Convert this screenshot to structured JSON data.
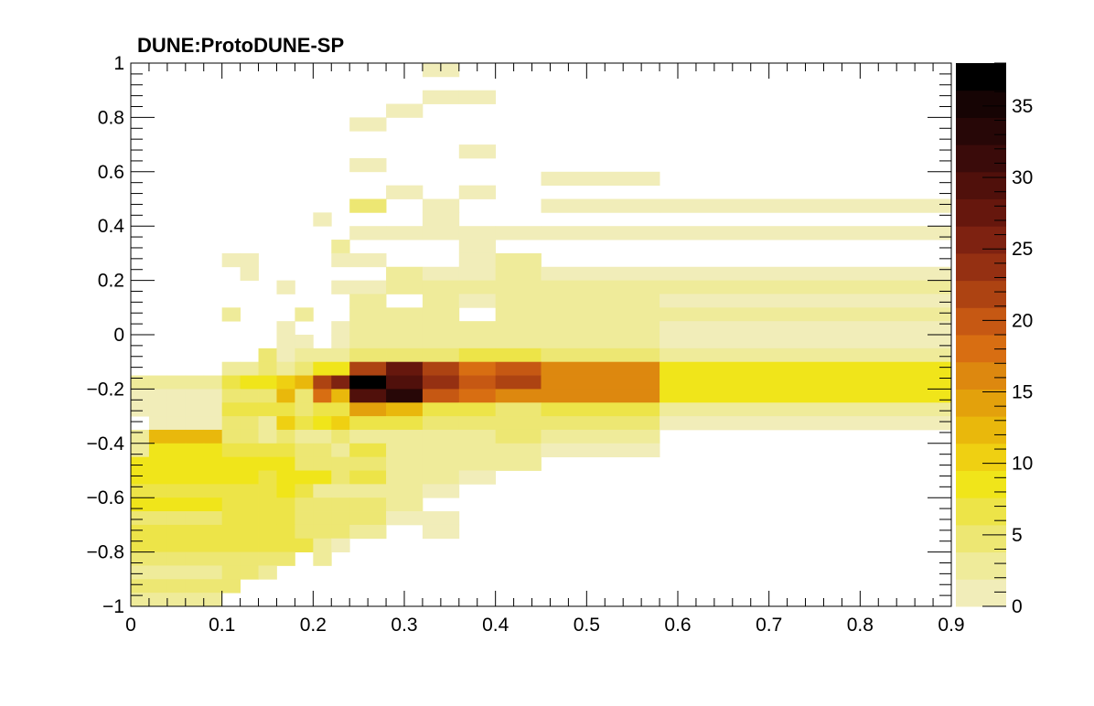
{
  "chart_data": {
    "type": "heatmap",
    "title": "DUNE:ProtoDUNE-SP",
    "xlabel": "",
    "ylabel": "",
    "xlim": [
      0,
      0.9
    ],
    "ylim": [
      -1,
      1
    ],
    "x_ticks": [
      "0",
      "0.1",
      "0.2",
      "0.3",
      "0.4",
      "0.5",
      "0.6",
      "0.7",
      "0.8",
      "0.9"
    ],
    "y_ticks": [
      "−1",
      "−0.8",
      "−0.6",
      "−0.4",
      "−0.2",
      "0",
      "0.2",
      "0.4",
      "0.6",
      "0.8",
      "1"
    ],
    "colorbar": {
      "range": [
        0,
        38
      ],
      "ticks": [
        "0",
        "5",
        "10",
        "15",
        "20",
        "25",
        "30",
        "35"
      ],
      "palette": [
        "#f1edb9",
        "#efeb9a",
        "#ede773",
        "#ede448",
        "#f0e51a",
        "#efd012",
        "#e9b80c",
        "#e3a10c",
        "#dd880f",
        "#d86e12",
        "#c65813",
        "#ad4312",
        "#953012",
        "#7e2211",
        "#66170d",
        "#50100b",
        "#3a0b0a",
        "#270707",
        "#160404",
        "#000000"
      ]
    },
    "x_edges": [
      0,
      0.02,
      0.04,
      0.06,
      0.08,
      0.1,
      0.12,
      0.14,
      0.16,
      0.18,
      0.2,
      0.22,
      0.24,
      0.28,
      0.32,
      0.36,
      0.4,
      0.45,
      0.58,
      0.9
    ],
    "y_edges": [
      -1,
      -0.95,
      -0.9,
      -0.85,
      -0.8,
      -0.75,
      -0.7,
      -0.65,
      -0.6,
      -0.55,
      -0.5,
      -0.45,
      -0.4,
      -0.35,
      -0.3,
      -0.25,
      -0.2,
      -0.15,
      -0.1,
      -0.05,
      0,
      0.05,
      0.1,
      0.15,
      0.2,
      0.25,
      0.3,
      0.35,
      0.4,
      0.45,
      0.5,
      0.55,
      0.6,
      0.65,
      0.7,
      0.75,
      0.8,
      0.85,
      0.9,
      0.95,
      1
    ],
    "y_rows_top_to_bottom": [
      [
        0,
        0,
        0,
        0,
        0,
        0,
        0,
        0,
        0,
        0,
        0,
        0,
        0,
        0,
        1,
        0,
        0,
        0,
        0
      ],
      [
        0,
        0,
        0,
        0,
        0,
        0,
        0,
        0,
        0,
        0,
        0,
        0,
        0,
        0,
        0,
        0,
        0,
        0,
        0
      ],
      [
        0,
        0,
        0,
        0,
        0,
        0,
        0,
        0,
        0,
        0,
        0,
        0,
        0,
        0,
        1,
        1,
        0,
        0,
        0
      ],
      [
        0,
        0,
        0,
        0,
        0,
        0,
        0,
        0,
        0,
        0,
        0,
        0,
        0,
        1,
        0,
        0,
        0,
        0,
        0
      ],
      [
        0,
        0,
        0,
        0,
        0,
        0,
        0,
        0,
        0,
        0,
        0,
        0,
        1,
        0,
        0,
        0,
        0,
        0,
        0
      ],
      [
        0,
        0,
        0,
        0,
        0,
        0,
        0,
        0,
        0,
        0,
        0,
        0,
        0,
        0,
        0,
        0,
        0,
        0,
        0
      ],
      [
        0,
        0,
        0,
        0,
        0,
        0,
        0,
        0,
        0,
        0,
        0,
        0,
        0,
        0,
        0,
        1,
        0,
        0,
        0
      ],
      [
        0,
        0,
        0,
        0,
        0,
        0,
        0,
        0,
        0,
        0,
        0,
        0,
        1,
        0,
        0,
        0,
        0,
        0,
        0
      ],
      [
        0,
        0,
        0,
        0,
        0,
        0,
        0,
        0,
        0,
        0,
        0,
        0,
        0,
        0,
        0,
        0,
        0,
        1,
        0
      ],
      [
        0,
        0,
        0,
        0,
        0,
        0,
        0,
        0,
        0,
        0,
        0,
        0,
        0,
        1,
        0,
        1,
        0,
        0,
        0
      ],
      [
        0,
        0,
        0,
        0,
        0,
        0,
        0,
        0,
        0,
        0,
        0,
        0,
        4,
        0,
        1,
        0,
        0,
        1,
        1
      ],
      [
        0,
        0,
        0,
        0,
        0,
        0,
        0,
        0,
        0,
        0,
        1,
        0,
        0,
        0,
        1,
        0,
        0,
        0,
        0
      ],
      [
        0,
        0,
        0,
        0,
        0,
        0,
        0,
        0,
        0,
        0,
        0,
        0,
        1,
        1,
        1,
        1,
        1,
        1,
        1
      ],
      [
        0,
        0,
        0,
        0,
        0,
        0,
        0,
        0,
        0,
        0,
        0,
        3,
        0,
        0,
        0,
        1,
        0,
        0,
        0
      ],
      [
        0,
        0,
        0,
        0,
        0,
        1,
        1,
        0,
        0,
        0,
        0,
        1,
        1,
        0,
        0,
        1,
        2,
        0,
        0
      ],
      [
        0,
        0,
        0,
        0,
        0,
        0,
        1,
        0,
        0,
        0,
        0,
        0,
        0,
        2,
        1,
        1,
        2,
        1,
        1
      ],
      [
        0,
        0,
        0,
        0,
        0,
        0,
        0,
        0,
        1,
        0,
        0,
        1,
        1,
        2,
        2,
        2,
        2,
        2,
        2
      ],
      [
        0,
        0,
        0,
        0,
        0,
        0,
        0,
        0,
        0,
        0,
        0,
        0,
        3,
        0,
        2,
        1,
        2,
        2,
        1
      ],
      [
        0,
        0,
        0,
        0,
        0,
        2,
        0,
        0,
        0,
        2,
        0,
        0,
        3,
        2,
        2,
        0,
        2,
        2,
        2
      ],
      [
        0,
        0,
        0,
        0,
        0,
        0,
        0,
        0,
        1,
        0,
        0,
        1,
        3,
        3,
        2,
        3,
        3,
        2,
        1
      ],
      [
        0,
        0,
        0,
        0,
        0,
        0,
        0,
        0,
        1,
        1,
        0,
        1,
        3,
        3,
        3,
        3,
        3,
        3,
        1
      ],
      [
        0,
        0,
        0,
        0,
        0,
        0,
        0,
        4,
        1,
        2,
        2,
        3,
        4,
        5,
        5,
        6,
        6,
        5,
        3
      ],
      [
        0,
        0,
        0,
        0,
        0,
        3,
        3,
        4,
        3,
        4,
        8,
        8,
        22,
        28,
        21,
        18,
        19,
        16,
        9
      ],
      [
        3,
        3,
        3,
        3,
        3,
        7,
        8,
        9,
        11,
        13,
        21,
        25,
        37,
        30,
        24,
        20,
        22,
        16,
        8
      ],
      [
        1,
        1,
        1,
        1,
        1,
        5,
        5,
        5,
        13,
        5,
        18,
        12,
        29,
        34,
        20,
        18,
        17,
        17,
        8
      ],
      [
        1,
        1,
        1,
        1,
        1,
        6,
        6,
        6,
        7,
        5,
        7,
        6,
        14,
        12,
        7,
        6,
        5,
        6,
        3
      ],
      [
        0,
        1,
        1,
        1,
        1,
        5,
        5,
        3,
        10,
        6,
        9,
        10,
        6,
        6,
        5,
        4,
        4,
        4,
        1
      ],
      [
        2,
        13,
        13,
        13,
        13,
        4,
        4,
        3,
        5,
        2,
        2,
        5,
        2,
        2,
        3,
        2,
        4,
        3,
        0
      ],
      [
        3,
        8,
        8,
        8,
        8,
        6,
        6,
        6,
        6,
        5,
        5,
        2,
        6,
        2,
        2,
        2,
        3,
        1,
        0
      ],
      [
        8,
        8,
        8,
        8,
        8,
        8,
        8,
        8,
        8,
        5,
        5,
        4,
        4,
        3,
        3,
        3,
        2,
        0,
        0
      ],
      [
        8,
        8,
        8,
        8,
        8,
        8,
        9,
        7,
        8,
        8,
        8,
        4,
        6,
        3,
        2,
        1,
        0,
        0,
        0
      ],
      [
        6,
        6,
        6,
        6,
        6,
        7,
        7,
        6,
        9,
        6,
        2,
        3,
        2,
        3,
        1,
        0,
        0,
        0,
        0
      ],
      [
        8,
        8,
        8,
        8,
        8,
        6,
        6,
        6,
        6,
        5,
        5,
        5,
        4,
        3,
        0,
        0,
        0,
        0,
        0
      ],
      [
        5,
        5,
        5,
        5,
        5,
        6,
        6,
        6,
        6,
        5,
        5,
        4,
        4,
        1,
        1,
        0,
        0,
        0,
        0
      ],
      [
        7,
        7,
        7,
        7,
        7,
        6,
        6,
        6,
        6,
        4,
        4,
        4,
        2,
        0,
        1,
        0,
        0,
        0,
        0
      ],
      [
        6,
        6,
        6,
        6,
        6,
        6,
        6,
        6,
        6,
        6,
        3,
        1,
        0,
        0,
        0,
        0,
        0,
        0,
        0
      ],
      [
        4,
        4,
        4,
        4,
        4,
        5,
        5,
        4,
        4,
        0,
        2,
        0,
        0,
        0,
        0,
        0,
        0,
        0,
        0
      ],
      [
        3,
        3,
        3,
        3,
        3,
        4,
        4,
        3,
        0,
        0,
        0,
        0,
        0,
        0,
        0,
        0,
        0,
        0,
        0
      ],
      [
        4,
        4,
        4,
        4,
        4,
        4,
        0,
        0,
        0,
        0,
        0,
        0,
        0,
        0,
        0,
        0,
        0,
        0,
        0
      ],
      [
        2,
        2,
        2,
        2,
        2,
        0,
        0,
        0,
        0,
        0,
        0,
        0,
        0,
        0,
        0,
        0,
        0,
        0,
        0
      ]
    ],
    "grid": false,
    "legend": "colorbar-right"
  }
}
